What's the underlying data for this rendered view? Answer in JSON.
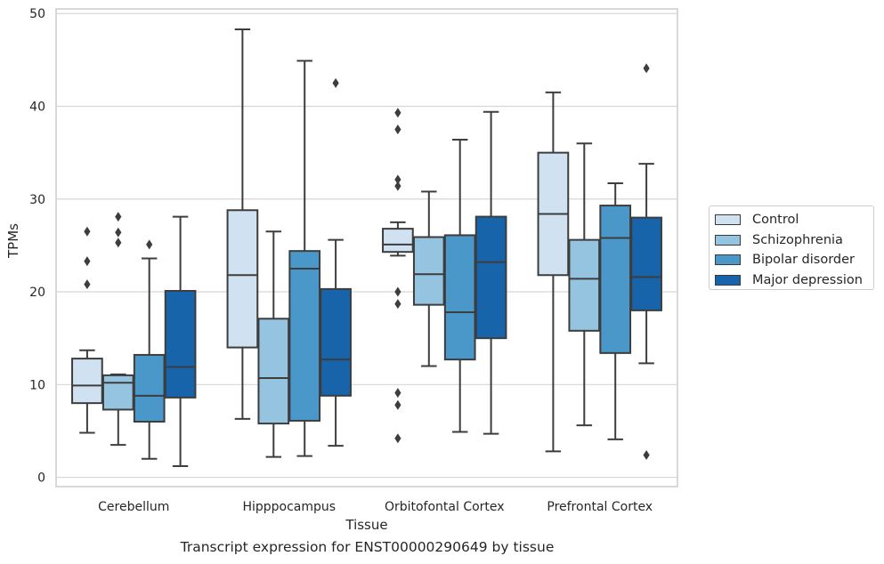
{
  "chart_data": {
    "type": "box",
    "title": "Transcript expression for ENST00000290649 by tissue",
    "xlabel": "Tissue",
    "ylabel": "TPMs",
    "ylim": [
      -1,
      50.5
    ],
    "yticks": [
      0,
      10,
      20,
      30,
      40,
      50
    ],
    "grid": "horizontal",
    "legend_position": "right",
    "categories": [
      "Cerebellum",
      "Hipppocampus",
      "Orbitofontal Cortex",
      "Prefrontal Cortex"
    ],
    "series": [
      {
        "name": "Control",
        "color": "#d0e1f2",
        "boxes": [
          {
            "whislo": 4.8,
            "q1": 8.0,
            "med": 9.9,
            "q3": 12.8,
            "whishi": 13.7,
            "fliers": [
              20.8,
              23.3,
              26.5
            ]
          },
          {
            "whislo": 6.3,
            "q1": 14.0,
            "med": 21.8,
            "q3": 28.8,
            "whishi": 48.3,
            "fliers": []
          },
          {
            "whislo": 23.9,
            "q1": 24.3,
            "med": 25.1,
            "q3": 26.8,
            "whishi": 27.5,
            "fliers": [
              4.2,
              7.8,
              9.1,
              18.7,
              20.0,
              31.4,
              32.1,
              37.5,
              39.3
            ]
          },
          {
            "whislo": 2.8,
            "q1": 21.8,
            "med": 28.4,
            "q3": 35.0,
            "whishi": 41.5,
            "fliers": []
          }
        ]
      },
      {
        "name": "Schizophrenia",
        "color": "#94c4df",
        "boxes": [
          {
            "whislo": 3.5,
            "q1": 7.3,
            "med": 10.2,
            "q3": 11.0,
            "whishi": 11.1,
            "fliers": [
              25.3,
              26.4,
              28.1
            ]
          },
          {
            "whislo": 2.2,
            "q1": 5.8,
            "med": 10.7,
            "q3": 17.1,
            "whishi": 26.5,
            "fliers": []
          },
          {
            "whislo": 12.0,
            "q1": 18.6,
            "med": 21.9,
            "q3": 25.9,
            "whishi": 30.8,
            "fliers": []
          },
          {
            "whislo": 5.6,
            "q1": 15.8,
            "med": 21.4,
            "q3": 25.6,
            "whishi": 36.0,
            "fliers": []
          }
        ]
      },
      {
        "name": "Bipolar disorder",
        "color": "#4a98c9",
        "boxes": [
          {
            "whislo": 2.0,
            "q1": 6.0,
            "med": 8.8,
            "q3": 13.2,
            "whishi": 23.6,
            "fliers": [
              25.1
            ]
          },
          {
            "whislo": 2.3,
            "q1": 6.1,
            "med": 22.5,
            "q3": 24.4,
            "whishi": 44.9,
            "fliers": []
          },
          {
            "whislo": 4.9,
            "q1": 12.7,
            "med": 17.8,
            "q3": 26.1,
            "whishi": 36.4,
            "fliers": []
          },
          {
            "whislo": 4.1,
            "q1": 13.4,
            "med": 25.8,
            "q3": 29.3,
            "whishi": 31.7,
            "fliers": []
          }
        ]
      },
      {
        "name": "Major depression",
        "color": "#1764ab",
        "boxes": [
          {
            "whislo": 1.2,
            "q1": 8.6,
            "med": 11.9,
            "q3": 20.1,
            "whishi": 28.1,
            "fliers": []
          },
          {
            "whislo": 3.4,
            "q1": 8.8,
            "med": 12.7,
            "q3": 20.3,
            "whishi": 25.6,
            "fliers": [
              42.5
            ]
          },
          {
            "whislo": 4.7,
            "q1": 15.0,
            "med": 23.2,
            "q3": 28.1,
            "whishi": 39.4,
            "fliers": []
          },
          {
            "whislo": 12.3,
            "q1": 18.0,
            "med": 21.6,
            "q3": 28.0,
            "whishi": 33.8,
            "fliers": [
              2.4,
              44.1
            ]
          }
        ]
      }
    ]
  }
}
